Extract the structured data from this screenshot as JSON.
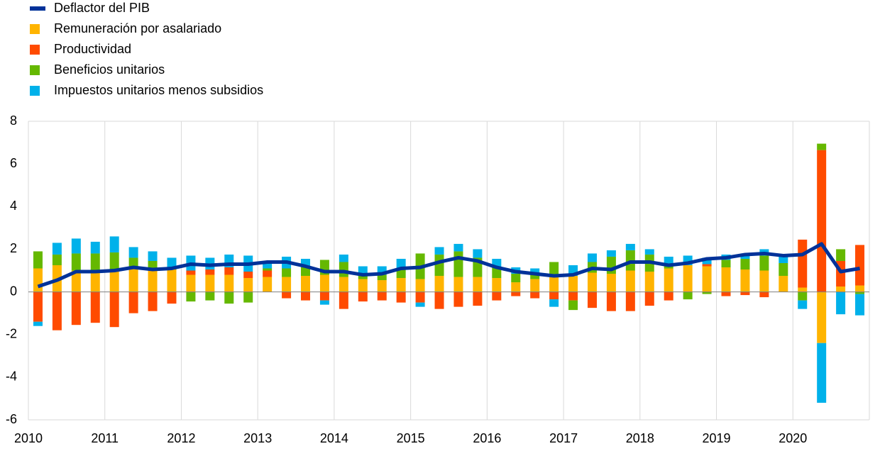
{
  "chart_data": {
    "type": "bar-line",
    "categories": [
      "2010",
      null,
      null,
      null,
      "2011",
      null,
      null,
      null,
      "2012",
      null,
      null,
      null,
      "2013",
      null,
      null,
      null,
      "2014",
      null,
      null,
      null,
      "2015",
      null,
      null,
      null,
      "2016",
      null,
      null,
      null,
      "2017",
      null,
      null,
      null,
      "2018",
      null,
      null,
      null,
      "2019",
      null,
      null,
      null,
      "2020",
      null,
      null,
      null
    ],
    "series": [
      {
        "name": "Deflactor del PIB",
        "color": "#003299",
        "kind": "line",
        "values": [
          0.25,
          0.55,
          0.95,
          0.95,
          1.0,
          1.15,
          1.05,
          1.1,
          1.3,
          1.25,
          1.3,
          1.3,
          1.4,
          1.4,
          1.2,
          0.95,
          0.95,
          0.8,
          0.85,
          1.1,
          1.15,
          1.4,
          1.6,
          1.45,
          1.15,
          0.95,
          0.85,
          0.75,
          0.8,
          1.1,
          1.05,
          1.4,
          1.4,
          1.25,
          1.35,
          1.55,
          1.6,
          1.75,
          1.8,
          1.7,
          1.75,
          2.25,
          0.95,
          1.1
        ]
      },
      {
        "name": "Remuneración por asalariado",
        "color": "#ffb400",
        "kind": "bar",
        "values": [
          1.1,
          1.25,
          1.0,
          1.0,
          1.0,
          1.1,
          1.0,
          1.05,
          0.8,
          0.8,
          0.8,
          0.65,
          0.7,
          0.7,
          0.75,
          0.8,
          0.7,
          0.6,
          0.55,
          0.65,
          0.6,
          0.75,
          0.7,
          0.7,
          0.65,
          0.45,
          0.6,
          0.7,
          0.75,
          0.9,
          0.85,
          1.0,
          0.95,
          1.1,
          1.25,
          1.2,
          1.15,
          1.05,
          1.0,
          0.75,
          0.2,
          -2.4,
          0.25,
          0.3
        ]
      },
      {
        "name": "Productividad",
        "color": "#ff4b00",
        "kind": "bar",
        "values": [
          -1.4,
          -1.8,
          -1.55,
          -1.45,
          -1.65,
          -1.0,
          -0.9,
          -0.55,
          0.2,
          0.25,
          0.35,
          0.3,
          0.3,
          -0.3,
          -0.4,
          -0.4,
          -0.8,
          -0.45,
          -0.4,
          -0.5,
          -0.5,
          -0.8,
          -0.7,
          -0.65,
          -0.4,
          -0.2,
          -0.3,
          -0.35,
          -0.4,
          -0.75,
          -0.9,
          -0.9,
          -0.65,
          -0.4,
          0,
          0.1,
          -0.2,
          -0.15,
          -0.25,
          0,
          2.25,
          6.65,
          1.2,
          1.9
        ]
      },
      {
        "name": "Beneficios unitarios",
        "color": "#65b800",
        "kind": "bar",
        "values": [
          0.8,
          0.5,
          0.8,
          0.8,
          0.85,
          0.5,
          0.45,
          0.1,
          -0.45,
          -0.4,
          -0.55,
          -0.5,
          0.1,
          0.4,
          0.4,
          0.7,
          0.7,
          0.25,
          0.25,
          0.4,
          1.2,
          1.0,
          1.2,
          0.9,
          0.5,
          0.4,
          0.2,
          0.7,
          -0.45,
          0.5,
          0.8,
          0.95,
          0.8,
          0.2,
          -0.35,
          -0.1,
          0.35,
          0.5,
          0.7,
          0.6,
          -0.4,
          0.3,
          0.55,
          -0.1
        ]
      },
      {
        "name": "Impuestos unitarios menos subsidios",
        "color": "#00b1ea",
        "kind": "bar",
        "values": [
          -0.2,
          0.55,
          0.7,
          0.55,
          0.75,
          0.5,
          0.45,
          0.45,
          0.7,
          0.55,
          0.6,
          0.75,
          0.3,
          0.55,
          0.4,
          -0.2,
          0.35,
          0.35,
          0.4,
          0.5,
          -0.2,
          0.35,
          0.35,
          0.4,
          0.4,
          0.3,
          0.3,
          -0.35,
          0.5,
          0.4,
          0.3,
          0.3,
          0.25,
          0.35,
          0.45,
          0.3,
          0.25,
          0.25,
          0.3,
          0.35,
          -0.4,
          -2.8,
          -1.05,
          -1.0
        ]
      }
    ],
    "ylim": [
      -6,
      8
    ],
    "yticks": [
      -6,
      -4,
      -2,
      0,
      2,
      4,
      6,
      8
    ],
    "grid": true
  }
}
